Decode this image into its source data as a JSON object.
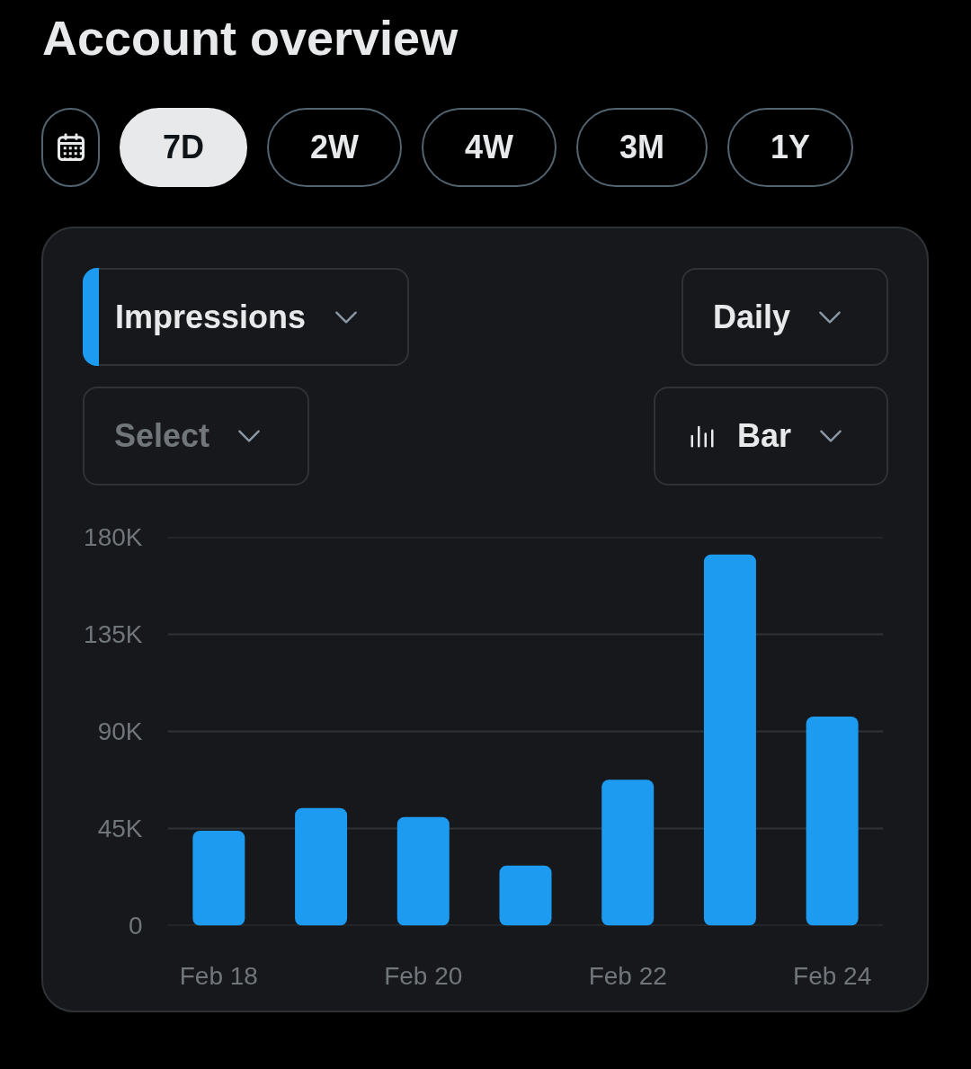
{
  "chart_data": {
    "type": "bar",
    "title": "Account overview",
    "annotations": [
      "7D",
      "2W",
      "4W",
      "3M",
      "1Y",
      "Daily",
      "Select",
      "Bar"
    ],
    "categories": [
      "Feb 18",
      null,
      "Feb 20",
      null,
      "Feb 22",
      null,
      "Feb 24"
    ],
    "series": [
      {
        "name": "Impressions",
        "color": "#1d9bf0",
        "values": [
          44000,
          54500,
          50300,
          27800,
          67600,
          172000,
          96900
        ]
      }
    ],
    "ylim": [
      0,
      180000
    ],
    "yticks": [
      0,
      {
        "value": 45000,
        "label": "45K"
      },
      {
        "value": 90000,
        "label": "90K"
      },
      {
        "value": 135000,
        "label": "135K"
      },
      {
        "value": 180000,
        "label": "180K"
      }
    ],
    "grid": "y",
    "legend": "top left"
  }
}
